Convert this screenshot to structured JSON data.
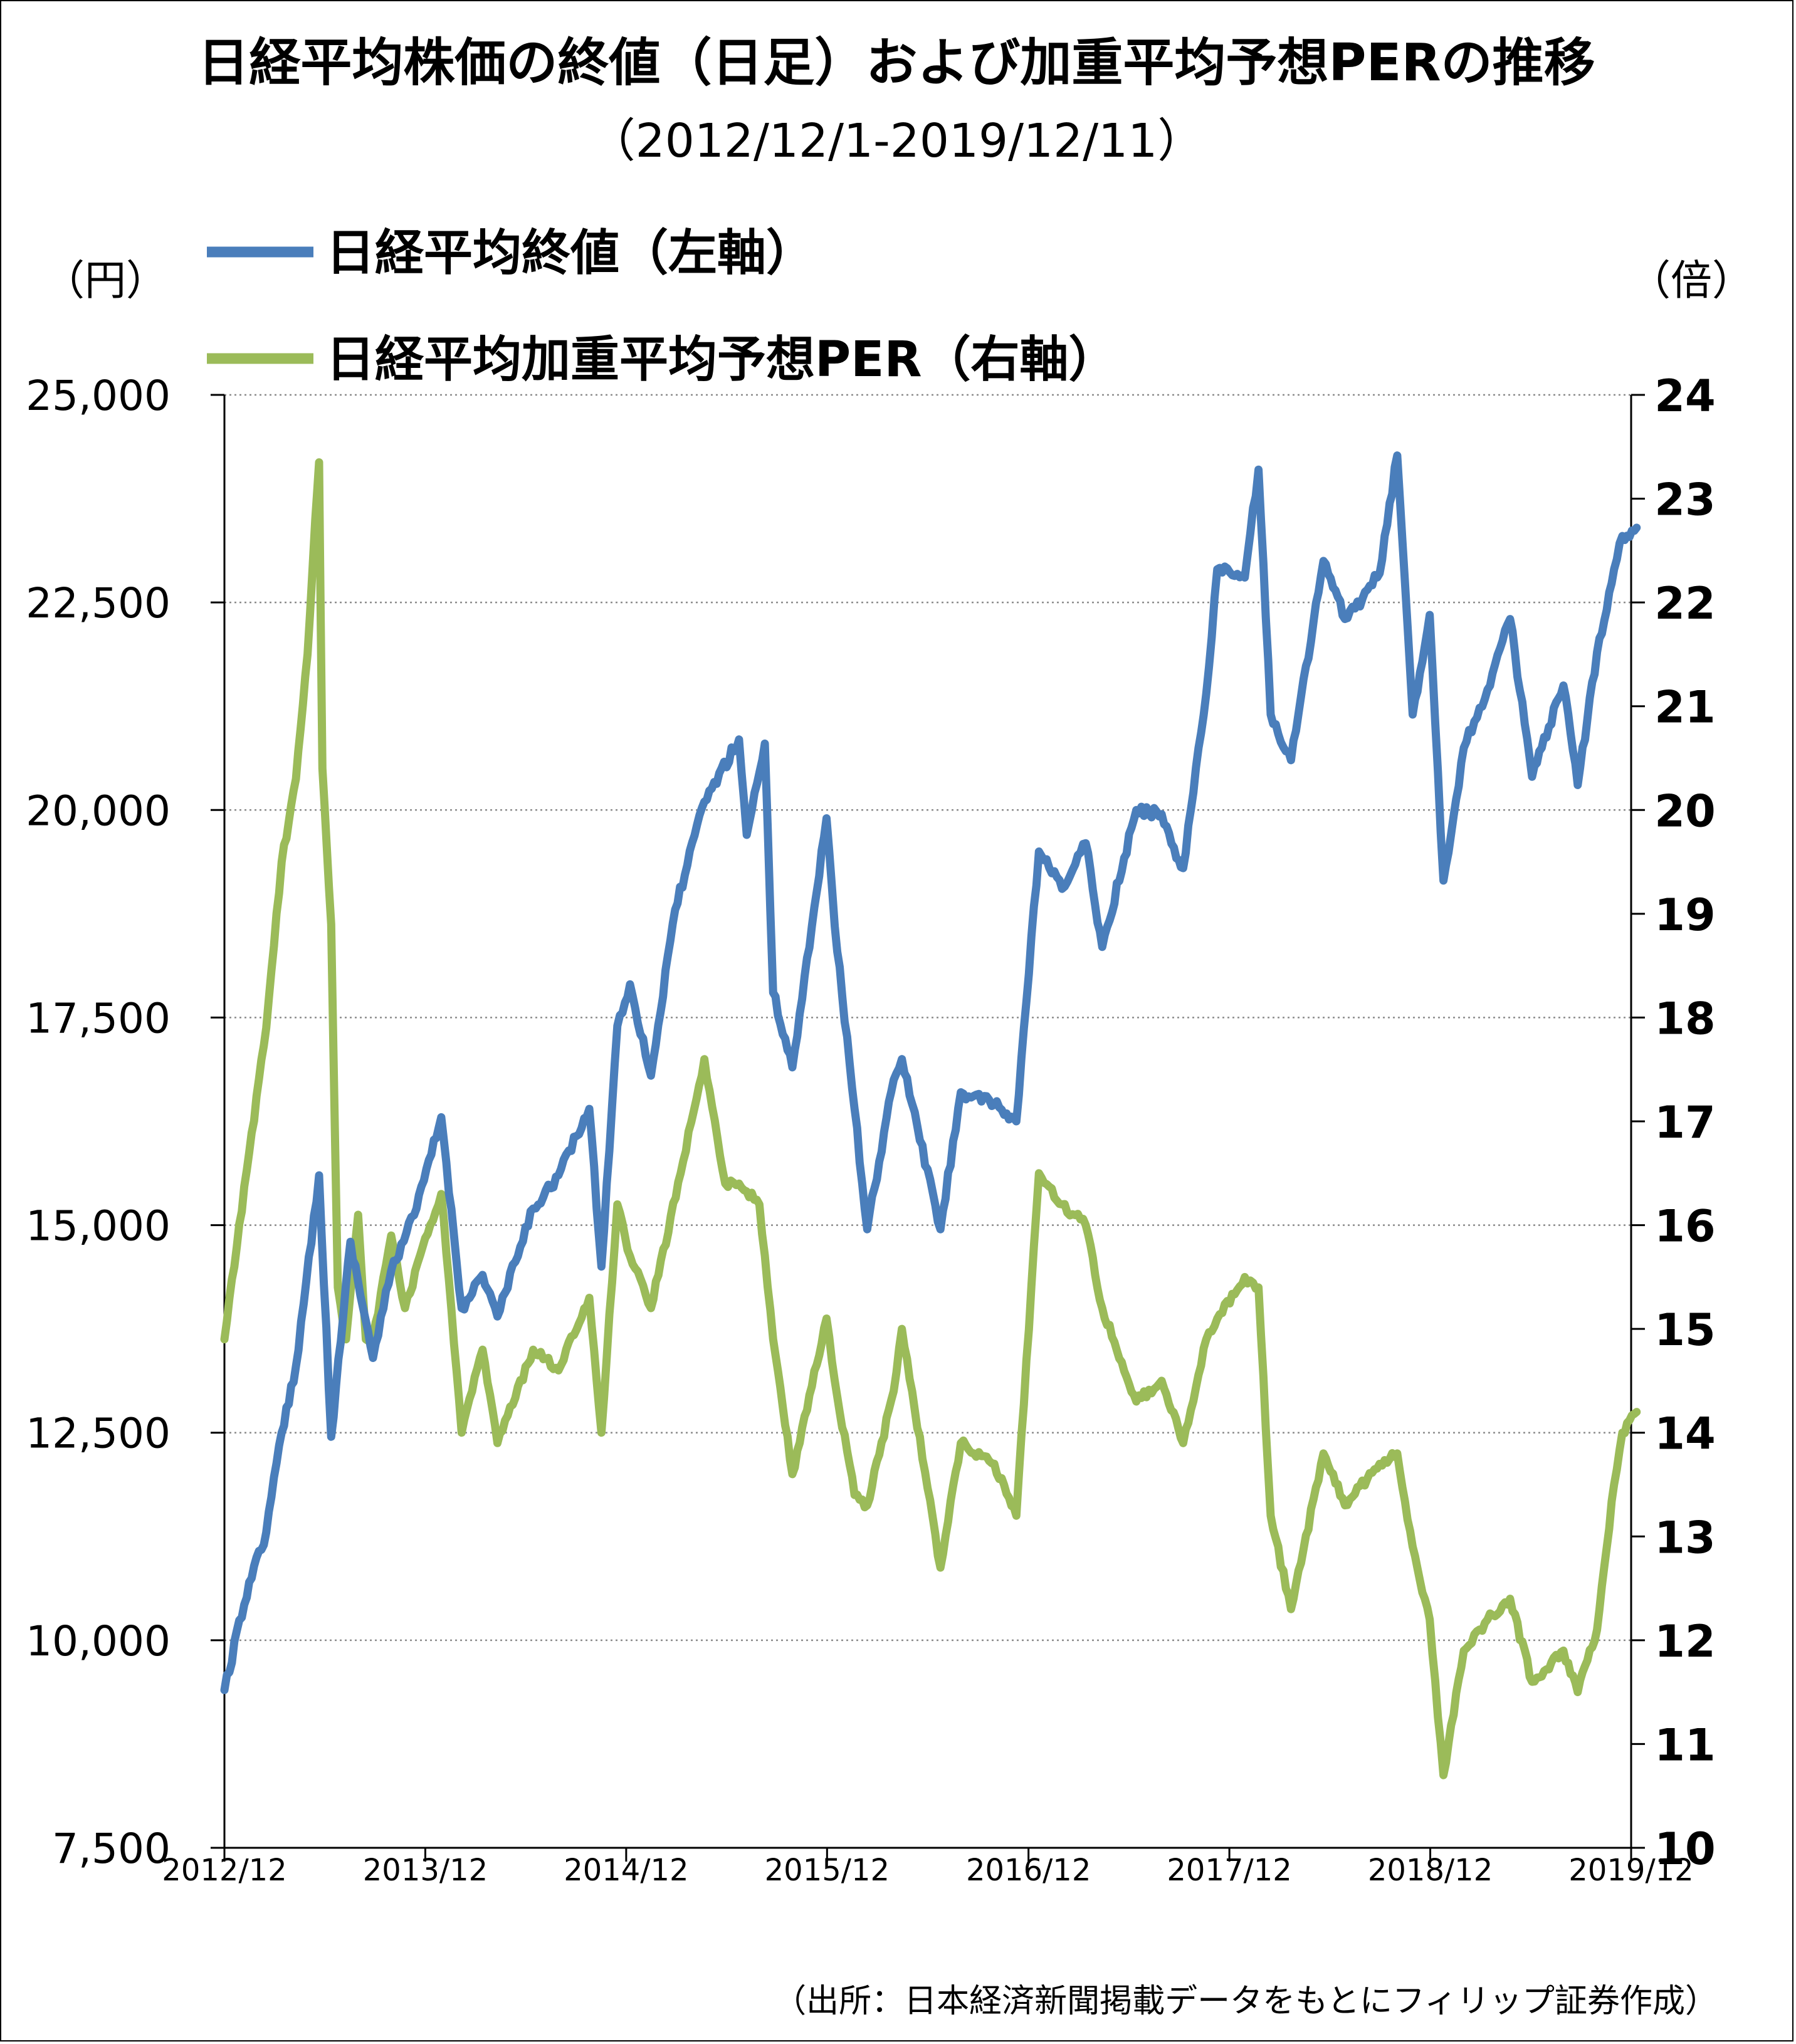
{
  "chart_data": {
    "type": "line",
    "title": "日経平均株価の終値（日足）および加重平均予想PERの推移",
    "subtitle": "（2012/12/1-2019/12/11）",
    "left_axis": {
      "unit": "（円）",
      "range": [
        7500,
        25000
      ],
      "ticks": [
        "25,000",
        "22,500",
        "20,000",
        "17,500",
        "15,000",
        "12,500",
        "10,000",
        "7,500"
      ]
    },
    "right_axis": {
      "unit": "（倍）",
      "range": [
        10,
        24
      ],
      "ticks": [
        "24",
        "23",
        "22",
        "21",
        "20",
        "19",
        "18",
        "17",
        "16",
        "15",
        "14",
        "13",
        "12",
        "11",
        "10"
      ]
    },
    "x_ticks": [
      "2012/12",
      "2013/12",
      "2014/12",
      "2015/12",
      "2016/12",
      "2017/12",
      "2018/12",
      "2019/12"
    ],
    "grid": true,
    "legend_position": "top-left",
    "source": "（出所：日本経済新聞掲載データをもとにフィリップ証券作成）",
    "series": [
      {
        "name": "日経平均終値（左軸）",
        "axis": "left",
        "color": "#4a7ebb",
        "points": [
          [
            "2012-12-01",
            9400
          ],
          [
            "2013-01-15",
            10700
          ],
          [
            "2013-02-15",
            11300
          ],
          [
            "2013-03-15",
            12500
          ],
          [
            "2013-04-10",
            13300
          ],
          [
            "2013-05-22",
            15600
          ],
          [
            "2013-06-13",
            12450
          ],
          [
            "2013-07-18",
            14800
          ],
          [
            "2013-08-28",
            13400
          ],
          [
            "2013-09-30",
            14450
          ],
          [
            "2013-11-15",
            15200
          ],
          [
            "2013-12-30",
            16300
          ],
          [
            "2014-02-05",
            14000
          ],
          [
            "2014-03-15",
            14400
          ],
          [
            "2014-04-11",
            13900
          ],
          [
            "2014-06-15",
            15200
          ],
          [
            "2014-07-31",
            15600
          ],
          [
            "2014-09-25",
            16400
          ],
          [
            "2014-10-17",
            14500
          ],
          [
            "2014-11-15",
            17400
          ],
          [
            "2014-12-08",
            17900
          ],
          [
            "2015-01-15",
            16800
          ],
          [
            "2015-02-28",
            18800
          ],
          [
            "2015-04-22",
            20100
          ],
          [
            "2015-06-24",
            20850
          ],
          [
            "2015-07-08",
            19700
          ],
          [
            "2015-08-10",
            20800
          ],
          [
            "2015-08-25",
            17800
          ],
          [
            "2015-09-29",
            16900
          ],
          [
            "2015-11-30",
            19900
          ],
          [
            "2015-12-15",
            18600
          ],
          [
            "2016-01-20",
            16400
          ],
          [
            "2016-02-12",
            14950
          ],
          [
            "2016-03-31",
            16750
          ],
          [
            "2016-04-15",
            17000
          ],
          [
            "2016-06-24",
            14950
          ],
          [
            "2016-07-31",
            16600
          ],
          [
            "2016-09-30",
            16450
          ],
          [
            "2016-11-09",
            16250
          ],
          [
            "2016-12-20",
            19500
          ],
          [
            "2017-01-31",
            19050
          ],
          [
            "2017-03-15",
            19600
          ],
          [
            "2017-04-14",
            18350
          ],
          [
            "2017-06-15",
            20000
          ],
          [
            "2017-07-31",
            19950
          ],
          [
            "2017-08-31",
            19400
          ],
          [
            "2017-09-08",
            19300
          ],
          [
            "2017-10-20",
            21400
          ],
          [
            "2017-11-09",
            22900
          ],
          [
            "2017-12-29",
            22800
          ],
          [
            "2018-01-23",
            24100
          ],
          [
            "2018-02-14",
            21150
          ],
          [
            "2018-03-23",
            20600
          ],
          [
            "2018-05-21",
            23000
          ],
          [
            "2018-06-29",
            22300
          ],
          [
            "2018-07-31",
            22550
          ],
          [
            "2018-08-31",
            22850
          ],
          [
            "2018-10-02",
            24270
          ],
          [
            "2018-10-30",
            21150
          ],
          [
            "2018-11-30",
            22350
          ],
          [
            "2018-12-25",
            19150
          ],
          [
            "2019-01-31",
            20750
          ],
          [
            "2019-03-15",
            21450
          ],
          [
            "2019-04-25",
            22300
          ],
          [
            "2019-06-04",
            20400
          ],
          [
            "2019-07-31",
            21500
          ],
          [
            "2019-08-26",
            20300
          ],
          [
            "2019-09-30",
            21900
          ],
          [
            "2019-10-31",
            22900
          ],
          [
            "2019-11-15",
            23300
          ],
          [
            "2019-12-11",
            23400
          ]
        ]
      },
      {
        "name": "日経平均加重平均予想PER（右軸）",
        "axis": "right",
        "color": "#9bbb59",
        "points": [
          [
            "2012-12-01",
            14.9
          ],
          [
            "2013-01-15",
            16.7
          ],
          [
            "2013-02-15",
            17.9
          ],
          [
            "2013-03-15",
            19.5
          ],
          [
            "2013-04-10",
            20.3
          ],
          [
            "2013-05-01",
            21.5
          ],
          [
            "2013-05-15",
            22.8
          ],
          [
            "2013-05-22",
            23.35
          ],
          [
            "2013-05-28",
            20.4
          ],
          [
            "2013-06-13",
            18.9
          ],
          [
            "2013-06-25",
            15.4
          ],
          [
            "2013-07-10",
            14.9
          ],
          [
            "2013-08-01",
            16.1
          ],
          [
            "2013-08-15",
            14.9
          ],
          [
            "2013-08-28",
            14.9
          ],
          [
            "2013-09-30",
            15.9
          ],
          [
            "2013-10-25",
            15.2
          ],
          [
            "2013-12-10",
            16.0
          ],
          [
            "2013-12-30",
            16.3
          ],
          [
            "2014-02-05",
            14.0
          ],
          [
            "2014-03-15",
            14.8
          ],
          [
            "2014-04-11",
            13.9
          ],
          [
            "2014-06-15",
            14.8
          ],
          [
            "2014-07-31",
            14.6
          ],
          [
            "2014-09-25",
            15.3
          ],
          [
            "2014-10-17",
            14.0
          ],
          [
            "2014-11-15",
            16.2
          ],
          [
            "2014-12-08",
            15.7
          ],
          [
            "2015-01-15",
            15.2
          ],
          [
            "2015-03-10",
            16.5
          ],
          [
            "2015-04-22",
            17.6
          ],
          [
            "2015-05-30",
            16.4
          ],
          [
            "2015-06-24",
            16.4
          ],
          [
            "2015-07-31",
            16.2
          ],
          [
            "2015-08-25",
            14.9
          ],
          [
            "2015-09-29",
            13.6
          ],
          [
            "2015-11-30",
            15.1
          ],
          [
            "2015-12-15",
            14.5
          ],
          [
            "2016-01-20",
            13.4
          ],
          [
            "2016-02-12",
            13.3
          ],
          [
            "2016-03-31",
            14.4
          ],
          [
            "2016-04-15",
            15.0
          ],
          [
            "2016-06-24",
            12.7
          ],
          [
            "2016-07-31",
            13.9
          ],
          [
            "2016-09-30",
            13.7
          ],
          [
            "2016-11-09",
            13.2
          ],
          [
            "2016-12-20",
            16.5
          ],
          [
            "2017-01-31",
            16.2
          ],
          [
            "2017-03-15",
            16.0
          ],
          [
            "2017-04-14",
            15.2
          ],
          [
            "2017-06-15",
            14.3
          ],
          [
            "2017-07-31",
            14.5
          ],
          [
            "2017-09-08",
            13.9
          ],
          [
            "2017-10-20",
            14.9
          ],
          [
            "2017-11-09",
            15.1
          ],
          [
            "2017-12-29",
            15.5
          ],
          [
            "2018-01-23",
            15.4
          ],
          [
            "2018-02-14",
            13.2
          ],
          [
            "2018-03-23",
            12.3
          ],
          [
            "2018-05-21",
            13.8
          ],
          [
            "2018-06-29",
            13.3
          ],
          [
            "2018-08-31",
            13.7
          ],
          [
            "2018-10-02",
            13.8
          ],
          [
            "2018-10-30",
            12.9
          ],
          [
            "2018-11-30",
            12.2
          ],
          [
            "2018-12-25",
            10.7
          ],
          [
            "2019-01-31",
            11.9
          ],
          [
            "2019-03-15",
            12.2
          ],
          [
            "2019-04-25",
            12.4
          ],
          [
            "2019-06-04",
            11.6
          ],
          [
            "2019-07-31",
            11.9
          ],
          [
            "2019-08-26",
            11.5
          ],
          [
            "2019-09-30",
            12.1
          ],
          [
            "2019-10-31",
            13.5
          ],
          [
            "2019-11-15",
            14.0
          ],
          [
            "2019-12-11",
            14.2
          ]
        ]
      }
    ]
  }
}
